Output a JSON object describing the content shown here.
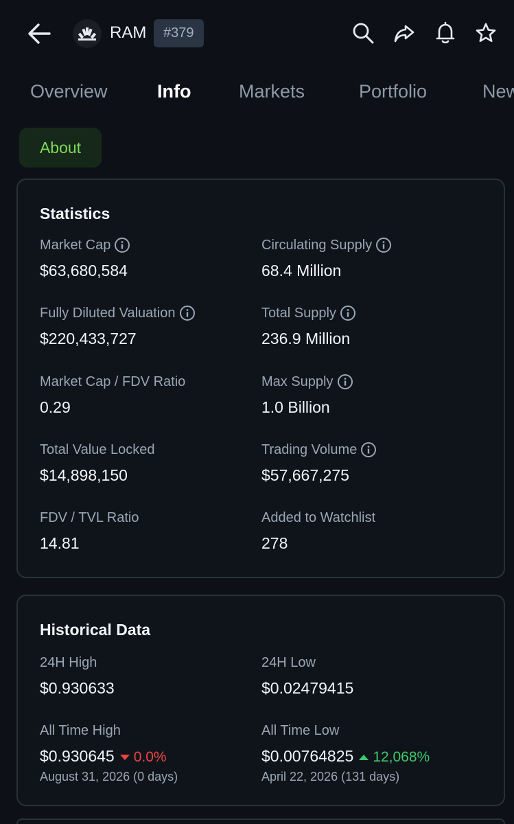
{
  "header": {
    "coin_name": "RAM",
    "rank": "#379",
    "icons": [
      "back-arrow-icon",
      "coin-logo-icon",
      "search-icon",
      "share-icon",
      "bell-icon",
      "star-icon"
    ]
  },
  "tabs": [
    {
      "label": "Overview",
      "active": false
    },
    {
      "label": "Info",
      "active": true
    },
    {
      "label": "Markets",
      "active": false
    },
    {
      "label": "Portfolio",
      "active": false
    },
    {
      "label": "News",
      "active": false
    }
  ],
  "chip": {
    "label": "About",
    "color": "#7fd858"
  },
  "statistics": {
    "title": "Statistics",
    "items": [
      {
        "label": "Market Cap",
        "value": "$63,680,584",
        "info": true
      },
      {
        "label": "Circulating Supply",
        "value": "68.4 Million",
        "info": true
      },
      {
        "label": "Fully Diluted Valuation",
        "value": "$220,433,727",
        "info": true
      },
      {
        "label": "Total Supply",
        "value": "236.9 Million",
        "info": true
      },
      {
        "label": "Market Cap / FDV Ratio",
        "value": "0.29",
        "info": false
      },
      {
        "label": "Max Supply",
        "value": "1.0 Billion",
        "info": true
      },
      {
        "label": "Total Value Locked",
        "value": "$14,898,150",
        "info": false
      },
      {
        "label": "Trading Volume",
        "value": "$57,667,275",
        "info": true
      },
      {
        "label": "FDV / TVL Ratio",
        "value": "14.81",
        "info": false
      },
      {
        "label": "Added to Watchlist",
        "value": "278",
        "info": false
      }
    ]
  },
  "historical": {
    "title": "Historical Data",
    "high_24h": {
      "label": "24H High",
      "value": "$0.930633"
    },
    "low_24h": {
      "label": "24H Low",
      "value": "$0.02479415"
    },
    "ath": {
      "label": "All Time High",
      "value": "$0.930645",
      "change": "0.0%",
      "date": "August 31, 2026 (0 days)",
      "color": "#ef4444"
    },
    "atl": {
      "label": "All Time Low",
      "value": "$0.00764825",
      "change": "12,068%",
      "date": "April 22, 2026 (131 days)",
      "color": "#3ec86b"
    }
  }
}
